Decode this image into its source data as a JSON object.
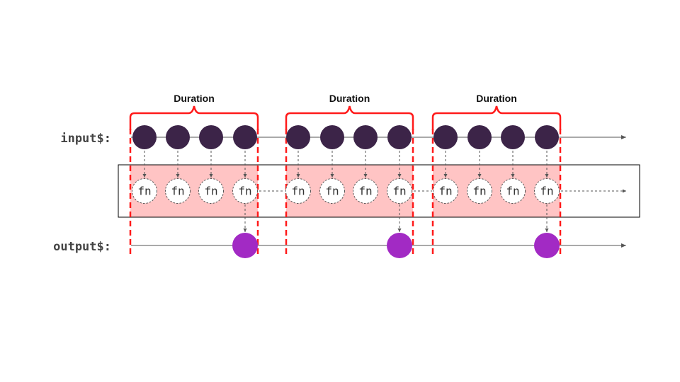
{
  "labels": {
    "input": "input$:",
    "output": "output$:"
  },
  "window_label": "Duration",
  "fn_label": "fn",
  "windows": [
    {
      "label": "Duration",
      "input_count": 4,
      "output_count": 1
    },
    {
      "label": "Duration",
      "input_count": 4,
      "output_count": 1
    },
    {
      "label": "Duration",
      "input_count": 4,
      "output_count": 1
    }
  ],
  "colors": {
    "input_marble": "#3c2448",
    "output_marble": "#a22ac4",
    "window_fill": "#ffc4c4",
    "window_border": "#ff1a1a",
    "line": "#555555",
    "box_border": "#000000"
  }
}
